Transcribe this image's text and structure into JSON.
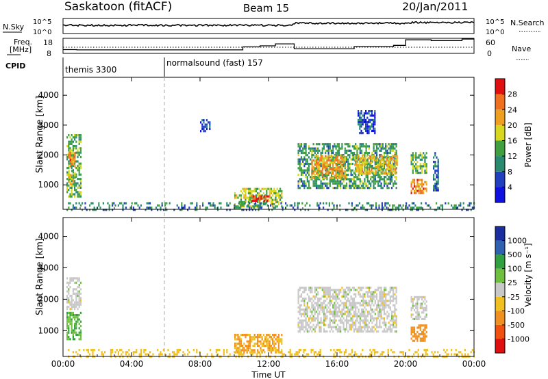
{
  "header": {
    "station": "Saskatoon (fitACF)",
    "beam": "Beam 15",
    "date": "20/Jan/2011"
  },
  "strip_labels": {
    "nsky": "N.Sky",
    "nsky_tick_top": "10^5",
    "nsky_tick_bottom": "10^0",
    "nsearch": "N.Search",
    "nsearch_tick_top": "10^5",
    "nsearch_tick_bottom": "10^0",
    "freq_line1": "Freq.",
    "freq_line2": "[MHz]",
    "freq_tick_top": "18",
    "freq_tick_bottom": "8",
    "nave": "Nave",
    "nave_tick_top": "60",
    "nave_tick_bottom": "0",
    "cpid": "CPID",
    "cpid_mode1": "themis 3300",
    "cpid_mode2": "normalsound (fast) 157"
  },
  "panels": {
    "ylabel": "Slant Range [km]",
    "y_ticks": [
      "1000",
      "2000",
      "3000",
      "4000"
    ],
    "x_ticks": [
      "00:00",
      "04:00",
      "08:00",
      "12:00",
      "16:00",
      "20:00",
      "00:00"
    ],
    "xlabel": "Time UT"
  },
  "colorbars": {
    "power": {
      "label": "Power [dB]",
      "ticks": [
        "4",
        "8",
        "12",
        "16",
        "20",
        "24",
        "28"
      ],
      "colors": [
        "#1010e0",
        "#2040c0",
        "#2a8a70",
        "#40a040",
        "#d8d820",
        "#f0a020",
        "#f07020",
        "#e01010"
      ]
    },
    "velocity": {
      "label": "Velocity [m s⁻¹]",
      "ticks": [
        "1000",
        "500",
        "100",
        "25",
        "-25",
        "-100",
        "-500",
        "-1000"
      ],
      "colors": [
        "#1a2ea0",
        "#3060b0",
        "#30a040",
        "#70c040",
        "#c8c8c8",
        "#f0c020",
        "#f09020",
        "#f05010",
        "#e01010"
      ]
    }
  },
  "chart_data": {
    "type": "heatmap",
    "x_range_hours": [
      0,
      24
    ],
    "y_range_km": [
      180,
      4600
    ],
    "beam": 15,
    "cpid_modes": [
      {
        "name": "themis",
        "id": 3300,
        "start_hour": 0,
        "end_hour": 6.0
      },
      {
        "name": "normalsound (fast)",
        "id": 157,
        "start_hour": 6.0,
        "end_hour": 24
      }
    ],
    "frequency_mhz": [
      {
        "start_hour": 0,
        "end_hour": 0.8,
        "value": 10.5
      },
      {
        "start_hour": 0.8,
        "end_hour": 10.5,
        "value": 10.3
      },
      {
        "start_hour": 10.5,
        "end_hour": 11.5,
        "value": 12.3
      },
      {
        "start_hour": 11.5,
        "end_hour": 12.4,
        "value": 13.0
      },
      {
        "start_hour": 12.4,
        "end_hour": 13.5,
        "value": 14.3
      },
      {
        "start_hour": 13.5,
        "end_hour": 17.0,
        "value": 11.0
      },
      {
        "start_hour": 17.0,
        "end_hour": 19.3,
        "value": 12.5
      },
      {
        "start_hour": 19.3,
        "end_hour": 20.0,
        "value": 13.3
      },
      {
        "start_hour": 20.0,
        "end_hour": 21.5,
        "value": 17.0
      },
      {
        "start_hour": 21.5,
        "end_hour": 23.3,
        "value": 16.5
      },
      {
        "start_hour": 23.3,
        "end_hour": 24,
        "value": 17.5
      }
    ],
    "nave_reference": 20,
    "power_regions_db": [
      {
        "t0": 0.2,
        "t1": 1.0,
        "r0": 600,
        "r1": 2700,
        "value": 14
      },
      {
        "t0": 0.3,
        "t1": 0.7,
        "r0": 1600,
        "r1": 2100,
        "value": 24
      },
      {
        "t0": 0.3,
        "t1": 0.7,
        "r0": 1000,
        "r1": 1500,
        "value": 18
      },
      {
        "t0": 10.0,
        "t1": 12.8,
        "r0": 300,
        "r1": 900,
        "value": 16
      },
      {
        "t0": 11.0,
        "t1": 12.0,
        "r0": 450,
        "r1": 650,
        "value": 28
      },
      {
        "t0": 13.7,
        "t1": 19.5,
        "r0": 900,
        "r1": 2400,
        "value": 12
      },
      {
        "t0": 14.5,
        "t1": 16.5,
        "r0": 1200,
        "r1": 2000,
        "value": 22
      },
      {
        "t0": 17.0,
        "t1": 19.5,
        "r0": 1400,
        "r1": 2000,
        "value": 20
      },
      {
        "t0": 17.2,
        "t1": 18.2,
        "r0": 2700,
        "r1": 3500,
        "value": 6
      },
      {
        "t0": 20.3,
        "t1": 21.2,
        "r0": 700,
        "r1": 1200,
        "value": 24
      },
      {
        "t0": 20.3,
        "t1": 21.2,
        "r0": 1400,
        "r1": 2100,
        "value": 14
      },
      {
        "t0": 21.6,
        "t1": 21.9,
        "r0": 800,
        "r1": 2100,
        "value": 8
      },
      {
        "t0": 8.0,
        "t1": 8.6,
        "r0": 2800,
        "r1": 3200,
        "value": 4
      },
      {
        "t0": 0.2,
        "t1": 24.0,
        "r0": 200,
        "r1": 420,
        "value": 10
      }
    ],
    "velocity_regions_ms": [
      {
        "t0": 0.2,
        "t1": 1.0,
        "r0": 1700,
        "r1": 2700,
        "value": 0
      },
      {
        "t0": 0.2,
        "t1": 1.0,
        "r0": 700,
        "r1": 1600,
        "value": 100
      },
      {
        "t0": 10.0,
        "t1": 12.8,
        "r0": 300,
        "r1": 900,
        "value": -100
      },
      {
        "t0": 13.7,
        "t1": 19.5,
        "r0": 1000,
        "r1": 2400,
        "value": 0
      },
      {
        "t0": 20.3,
        "t1": 21.2,
        "r0": 700,
        "r1": 1200,
        "value": -300
      },
      {
        "t0": 20.3,
        "t1": 21.2,
        "r0": 1400,
        "r1": 2100,
        "value": 0
      },
      {
        "t0": 0.2,
        "t1": 24.0,
        "r0": 200,
        "r1": 420,
        "value": -60
      }
    ]
  }
}
